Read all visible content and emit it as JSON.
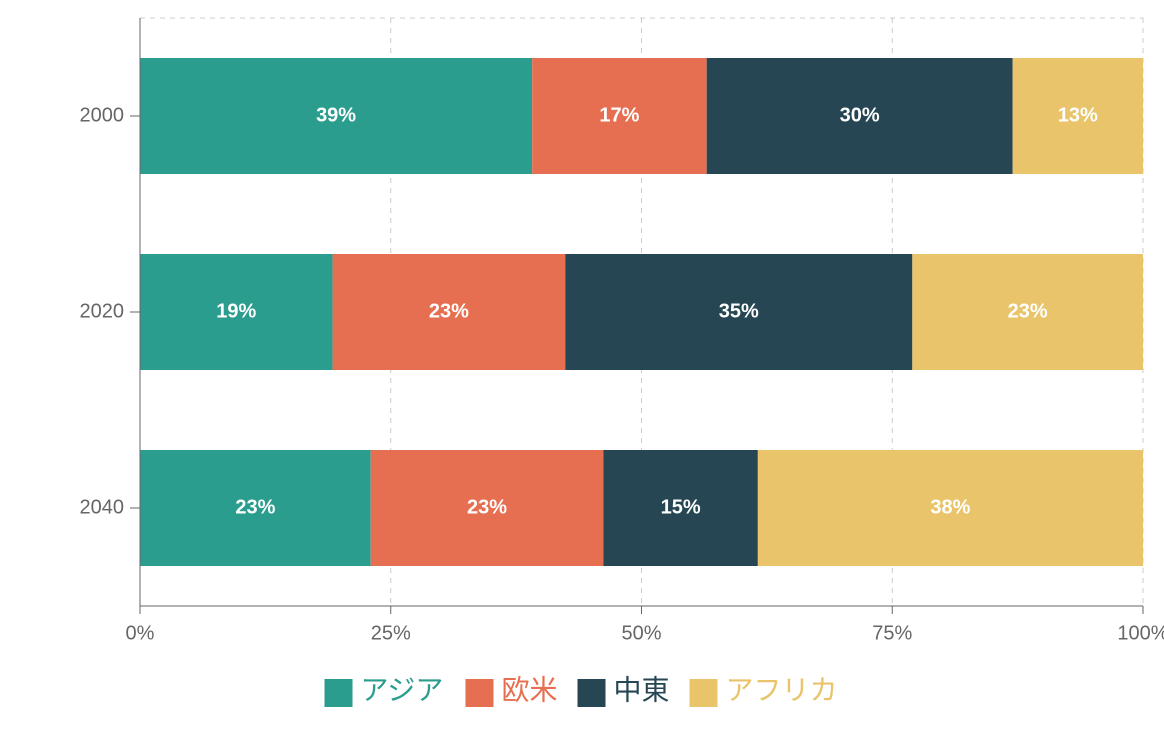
{
  "chart_data": {
    "type": "bar",
    "orientation": "horizontal",
    "stacked": true,
    "categories": [
      "2000",
      "2020",
      "2040"
    ],
    "series": [
      {
        "name": "アジア",
        "color": "#2a9d8f",
        "values": [
          39.1,
          19.2,
          23.0
        ],
        "value_labels": [
          "39%",
          "19%",
          "23%"
        ]
      },
      {
        "name": "欧米",
        "color": "#e76f51",
        "values": [
          17.4,
          23.2,
          23.2
        ],
        "value_labels": [
          "17%",
          "23%",
          "23%"
        ]
      },
      {
        "name": "中東",
        "color": "#264653",
        "values": [
          30.5,
          34.6,
          15.4
        ],
        "value_labels": [
          "30%",
          "35%",
          "15%"
        ]
      },
      {
        "name": "アフリカ",
        "color": "#e9c46a",
        "values": [
          13.0,
          23.0,
          38.4
        ],
        "value_labels": [
          "13%",
          "23%",
          "38%"
        ]
      }
    ],
    "xlim": [
      0,
      100
    ],
    "xticks": [
      {
        "value": 0,
        "label": "0%"
      },
      {
        "value": 25,
        "label": "25%"
      },
      {
        "value": 50,
        "label": "50%"
      },
      {
        "value": 75,
        "label": "75%"
      },
      {
        "value": 100,
        "label": "100%"
      }
    ],
    "grid": true,
    "legend": "bottom"
  }
}
